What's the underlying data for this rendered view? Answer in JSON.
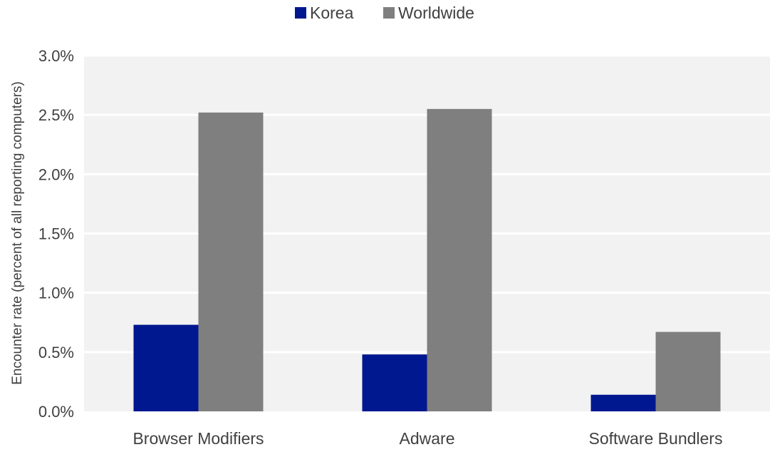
{
  "chart_data": {
    "type": "bar",
    "title": "",
    "xlabel": "",
    "ylabel": "Encounter rate (percent of all reporting computers)",
    "categories": [
      "Browser Modifiers",
      "Adware",
      "Software Bundlers"
    ],
    "series": [
      {
        "name": "Korea",
        "color": "#00188F",
        "values": [
          0.73,
          0.48,
          0.14
        ]
      },
      {
        "name": "Worldwide",
        "color": "#7F7F7F",
        "values": [
          2.52,
          2.55,
          0.67
        ]
      }
    ],
    "ylim": [
      0,
      3.0
    ],
    "yticks": [
      0.0,
      0.5,
      1.0,
      1.5,
      2.0,
      2.5,
      3.0
    ],
    "ytick_labels": [
      "0.0%",
      "0.5%",
      "1.0%",
      "1.5%",
      "2.0%",
      "2.5%",
      "3.0%"
    ],
    "grid": true,
    "plot_background": "#F2F2F2",
    "gridline_color": "#FFFFFF",
    "legend_position": "top-center"
  }
}
